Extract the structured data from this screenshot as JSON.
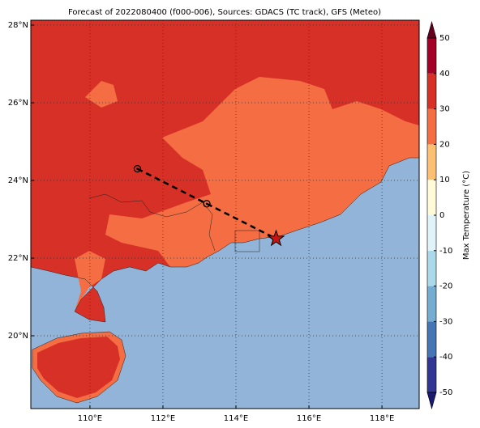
{
  "chart_data": {
    "type": "map",
    "title": "Forecast of 2022080400 (f000-006), Sources: GDACS (TC track), GFS (Meteo)",
    "xlim": [
      108.38,
      119.02
    ],
    "ylim": [
      18.125,
      28.125
    ],
    "xticks": [
      {
        "value": 110,
        "label": "110°E"
      },
      {
        "value": 112,
        "label": "112°E"
      },
      {
        "value": 114,
        "label": "114°E"
      },
      {
        "value": 116,
        "label": "116°E"
      },
      {
        "value": 118,
        "label": "118°E"
      }
    ],
    "yticks": [
      {
        "value": 20,
        "label": "20°N"
      },
      {
        "value": 22,
        "label": "22°N"
      },
      {
        "value": 24,
        "label": "24°N"
      },
      {
        "value": 26,
        "label": "26°N"
      },
      {
        "value": 28,
        "label": "28°N"
      }
    ],
    "grid": true,
    "track": {
      "lon": [
        111.3,
        113.2,
        115.1
      ],
      "lat": [
        24.3,
        23.4,
        22.5
      ],
      "color": "#000000",
      "marker_color": "#cc1111"
    },
    "colorbar": {
      "label": "Max Temperature (°C)",
      "lim": [
        -50,
        50
      ],
      "ticks": [
        -50,
        -40,
        -30,
        -20,
        -10,
        0,
        10,
        20,
        30,
        40,
        50
      ],
      "colors": [
        "#313695",
        "#4575b4",
        "#74add1",
        "#abd9e9",
        "#e0f3f8",
        "#fffbd8",
        "#fdbf71",
        "#f46d43",
        "#d73027",
        "#a50026"
      ],
      "under": "#1a1a6e",
      "over": "#67001f"
    }
  }
}
